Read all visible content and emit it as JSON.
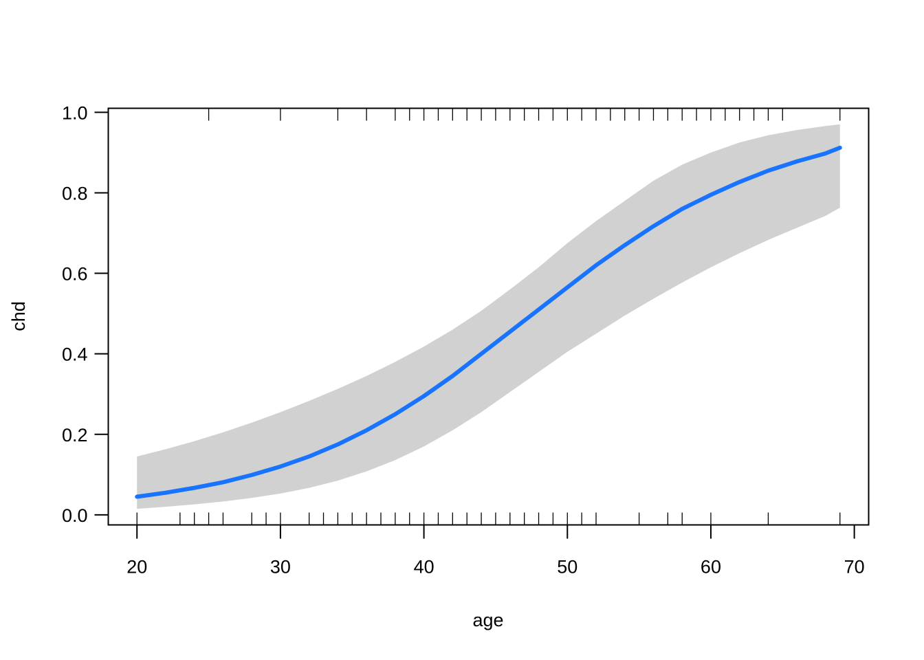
{
  "chart_data": {
    "type": "line",
    "title": "",
    "xlabel": "age",
    "ylabel": "chd",
    "xlim": [
      18,
      71
    ],
    "ylim": [
      -0.025,
      1.01
    ],
    "x_ticks": [
      20,
      30,
      40,
      50,
      60,
      70
    ],
    "y_ticks": [
      0.0,
      0.2,
      0.4,
      0.6,
      0.8,
      1.0
    ],
    "x_tick_labels": [
      "20",
      "30",
      "40",
      "50",
      "60",
      "70"
    ],
    "y_tick_labels": [
      "0.0",
      "0.2",
      "0.4",
      "0.6",
      "0.8",
      "1.0"
    ],
    "grid": false,
    "legend": "none",
    "colors": {
      "line": "#1874ff",
      "band": "#d1d1d1",
      "axis": "#000000"
    },
    "series": [
      {
        "x": [
          20,
          22,
          24,
          26,
          28,
          30,
          32,
          34,
          36,
          38,
          40,
          42,
          44,
          46,
          48,
          50,
          52,
          54,
          56,
          58,
          60,
          62,
          64,
          66,
          68,
          69
        ],
        "y": [
          0.045,
          0.055,
          0.067,
          0.081,
          0.099,
          0.12,
          0.145,
          0.175,
          0.21,
          0.25,
          0.295,
          0.345,
          0.4,
          0.455,
          0.51,
          0.565,
          0.62,
          0.67,
          0.717,
          0.76,
          0.795,
          0.827,
          0.855,
          0.878,
          0.898,
          0.912
        ],
        "lower": [
          0.015,
          0.02,
          0.026,
          0.033,
          0.042,
          0.053,
          0.067,
          0.085,
          0.108,
          0.136,
          0.17,
          0.21,
          0.255,
          0.305,
          0.355,
          0.405,
          0.45,
          0.495,
          0.537,
          0.577,
          0.615,
          0.65,
          0.683,
          0.713,
          0.743,
          0.763
        ],
        "upper": [
          0.145,
          0.163,
          0.183,
          0.205,
          0.229,
          0.255,
          0.283,
          0.313,
          0.345,
          0.38,
          0.418,
          0.46,
          0.507,
          0.56,
          0.615,
          0.675,
          0.73,
          0.78,
          0.83,
          0.87,
          0.9,
          0.925,
          0.943,
          0.956,
          0.966,
          0.97
        ]
      }
    ],
    "rug_x_top": [
      25,
      30,
      34,
      36,
      38,
      39,
      40,
      41,
      42,
      43,
      44,
      45,
      46,
      47,
      48,
      49,
      50,
      51,
      52,
      53,
      54,
      55,
      56,
      57,
      58,
      59,
      60,
      61,
      62,
      63,
      64,
      65,
      69
    ],
    "rug_x_bottom": [
      20,
      23,
      24,
      25,
      26,
      28,
      29,
      30,
      32,
      33,
      34,
      35,
      36,
      37,
      38,
      39,
      40,
      41,
      42,
      43,
      44,
      45,
      46,
      47,
      48,
      49,
      50,
      51,
      52,
      55,
      57,
      58,
      60,
      64,
      69
    ]
  }
}
